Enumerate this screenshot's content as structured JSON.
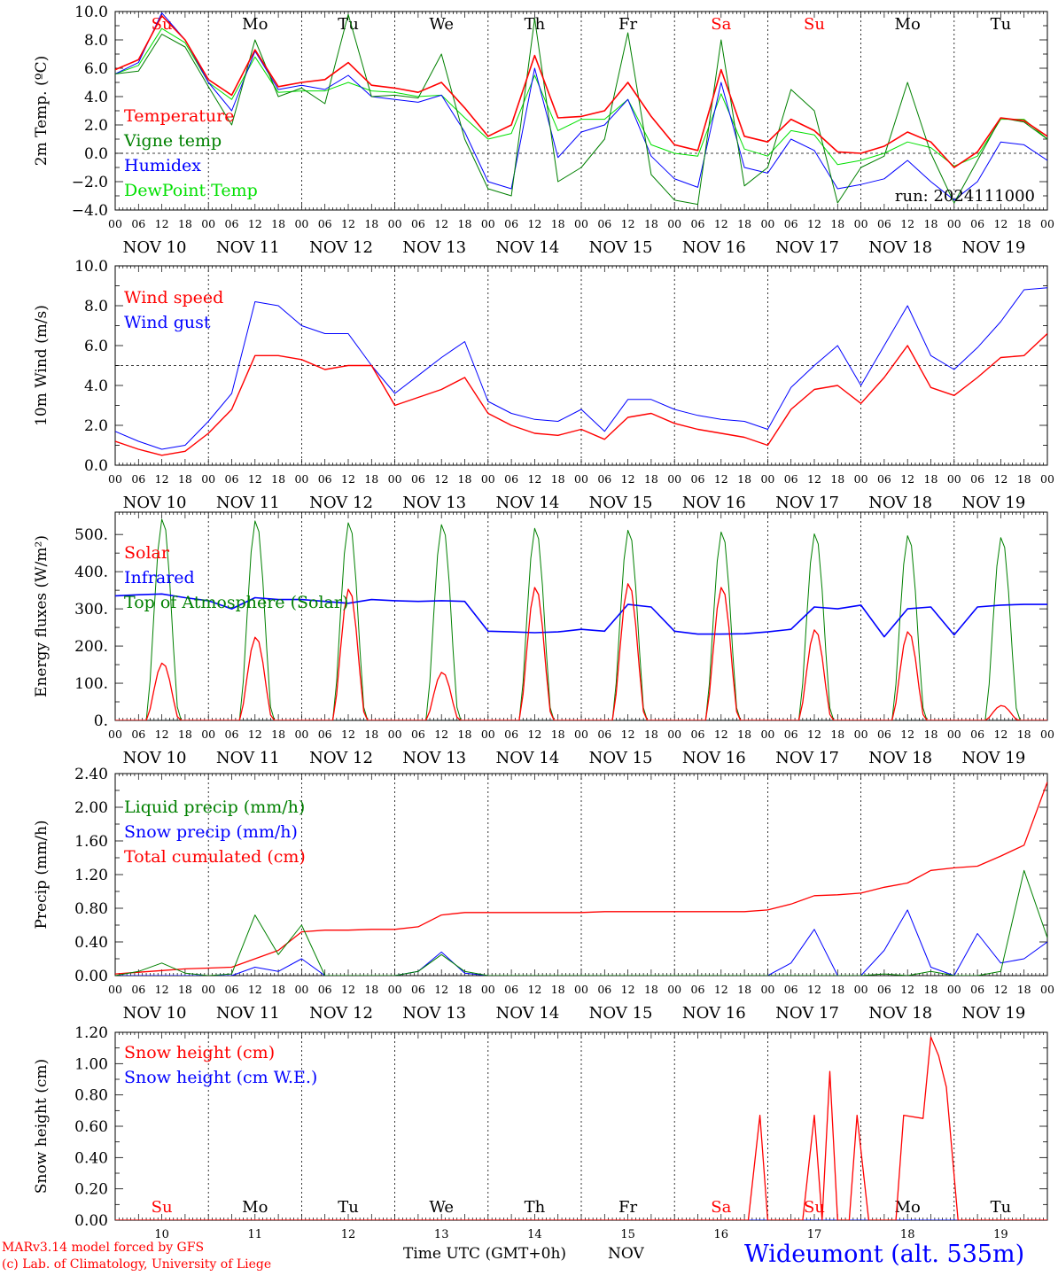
{
  "run_label": "run: 2024111000",
  "days": [
    {
      "abbr": "Su",
      "date": "NOV 10",
      "num": "10",
      "weekend": true
    },
    {
      "abbr": "Mo",
      "date": "NOV 11",
      "num": "11",
      "weekend": false
    },
    {
      "abbr": "Tu",
      "date": "NOV 12",
      "num": "12",
      "weekend": false
    },
    {
      "abbr": "We",
      "date": "NOV 13",
      "num": "13",
      "weekend": false
    },
    {
      "abbr": "Th",
      "date": "NOV 14",
      "num": "14",
      "weekend": false
    },
    {
      "abbr": "Fr",
      "date": "NOV 15",
      "num": "15",
      "weekend": false
    },
    {
      "abbr": "Sa",
      "date": "NOV 16",
      "num": "16",
      "weekend": true
    },
    {
      "abbr": "Su",
      "date": "NOV 17",
      "num": "17",
      "weekend": true
    },
    {
      "abbr": "Mo",
      "date": "NOV 18",
      "num": "18",
      "weekend": false
    },
    {
      "abbr": "Tu",
      "date": "NOV 19",
      "num": "19",
      "weekend": false
    }
  ],
  "hour_ticks": [
    "00",
    "06",
    "12",
    "18"
  ],
  "last_tick": "00",
  "colors": {
    "red": "#ff0000",
    "blue": "#0000ff",
    "green": "#008000",
    "lightgreen": "#00e000",
    "weekend": "#ff0000"
  },
  "chart_data": [
    {
      "type": "line",
      "ylabel": "2m Temp. (ºC)",
      "ylim": [
        -4,
        10
      ],
      "yticks": [
        "10.0",
        "8.0",
        "6.0",
        "4.0",
        "2.0",
        "0.0",
        "−2.0",
        "−4.0"
      ],
      "tickvals": [
        10,
        8,
        6,
        4,
        2,
        0,
        -2,
        -4
      ],
      "dashed_y": 0,
      "show_day_abbr": true,
      "x_hours": [
        0,
        6,
        12,
        18,
        24,
        30,
        36,
        42,
        48,
        54,
        60,
        66,
        72,
        78,
        84,
        90,
        96,
        102,
        108,
        114,
        120,
        126,
        132,
        138,
        144,
        150,
        156,
        162,
        168,
        174,
        180,
        186,
        192,
        198,
        204,
        210,
        216,
        222,
        228,
        234,
        240
      ],
      "series": [
        {
          "name": "Temperature",
          "color": "#ff0000",
          "width": 1.6,
          "values": [
            5.9,
            6.6,
            9.7,
            8.0,
            5.2,
            4.1,
            7.3,
            4.7,
            5.0,
            5.2,
            6.4,
            4.8,
            4.6,
            4.3,
            5.0,
            3.2,
            1.2,
            2.0,
            6.9,
            2.5,
            2.6,
            3.0,
            5.0,
            2.6,
            0.6,
            0.2,
            5.9,
            1.2,
            0.8,
            2.4,
            1.6,
            0.1,
            0.0,
            0.5,
            1.5,
            0.8,
            -1.0,
            0.1,
            2.5,
            2.3,
            1.2
          ]
        },
        {
          "name": "Vigne temp",
          "color": "#008000",
          "width": 1.0,
          "values": [
            5.6,
            5.8,
            8.4,
            7.5,
            4.7,
            2.0,
            8.0,
            4.0,
            4.6,
            3.5,
            9.8,
            4.0,
            4.1,
            3.9,
            7.0,
            1.0,
            -2.5,
            -3.0,
            9.5,
            -2.0,
            -1.0,
            1.0,
            8.5,
            -1.5,
            -3.3,
            -3.6,
            8.0,
            -2.3,
            -1.0,
            4.5,
            3.0,
            -3.5,
            -1.0,
            -0.2,
            5.0,
            0.0,
            -3.5,
            -0.5,
            2.5,
            2.2,
            1.0
          ]
        },
        {
          "name": "Humidex",
          "color": "#0000ff",
          "width": 1.0,
          "values": [
            5.6,
            6.4,
            9.9,
            8.0,
            5.0,
            3.0,
            7.2,
            4.5,
            4.8,
            4.5,
            5.5,
            4.0,
            3.8,
            3.6,
            4.1,
            1.5,
            -2.0,
            -2.5,
            6.0,
            -0.3,
            1.5,
            2.0,
            3.8,
            -0.2,
            -1.8,
            -2.4,
            5.0,
            -1.0,
            -1.4,
            1.0,
            0.2,
            -2.5,
            -2.2,
            -1.8,
            -0.5,
            -2.0,
            -3.3,
            -2.0,
            0.8,
            0.6,
            -0.5
          ]
        },
        {
          "name": "DewPoint Temp",
          "color": "#00e000",
          "width": 1.0,
          "values": [
            5.6,
            6.2,
            8.8,
            7.8,
            5.0,
            3.8,
            6.8,
            4.3,
            4.4,
            4.4,
            5.0,
            4.4,
            4.3,
            4.0,
            4.1,
            2.5,
            1.0,
            1.4,
            5.5,
            1.6,
            2.4,
            2.4,
            3.8,
            0.6,
            0.0,
            -0.2,
            4.2,
            0.3,
            -0.2,
            1.6,
            1.3,
            -0.8,
            -0.5,
            0.0,
            0.8,
            0.4,
            -0.9,
            -0.2,
            2.4,
            2.4,
            1.0
          ]
        }
      ]
    },
    {
      "type": "line",
      "ylabel": "10m Wind (m/s)",
      "ylim": [
        0,
        10
      ],
      "yticks": [
        "10.0",
        "8.0",
        "6.0",
        "4.0",
        "2.0",
        "0.0"
      ],
      "tickvals": [
        10,
        8,
        6,
        4,
        2,
        0
      ],
      "dashed_y": 5,
      "x_hours": [
        0,
        6,
        12,
        18,
        24,
        30,
        36,
        42,
        48,
        54,
        60,
        66,
        72,
        78,
        84,
        90,
        96,
        102,
        108,
        114,
        120,
        126,
        132,
        138,
        144,
        150,
        156,
        162,
        168,
        174,
        180,
        186,
        192,
        198,
        204,
        210,
        216,
        222,
        228,
        234,
        240
      ],
      "series": [
        {
          "name": "Wind speed",
          "color": "#ff0000",
          "width": 1.4,
          "values": [
            1.2,
            0.8,
            0.5,
            0.7,
            1.6,
            2.8,
            5.5,
            5.5,
            5.3,
            4.8,
            5.0,
            5.0,
            3.0,
            3.4,
            3.8,
            4.4,
            2.6,
            2.0,
            1.6,
            1.5,
            1.8,
            1.3,
            2.4,
            2.6,
            2.1,
            1.8,
            1.6,
            1.4,
            1.0,
            2.8,
            3.8,
            4.0,
            3.1,
            4.4,
            6.0,
            3.9,
            3.5,
            4.4,
            5.4,
            5.5,
            6.6
          ]
        },
        {
          "name": "Wind gust",
          "color": "#0000ff",
          "width": 1.0,
          "values": [
            1.7,
            1.2,
            0.8,
            1.0,
            2.2,
            3.6,
            8.2,
            8.0,
            7.0,
            6.6,
            6.6,
            5.0,
            3.6,
            4.5,
            5.4,
            6.2,
            3.2,
            2.6,
            2.3,
            2.2,
            2.8,
            1.7,
            3.3,
            3.3,
            2.8,
            2.5,
            2.3,
            2.2,
            1.8,
            3.9,
            5.0,
            6.0,
            4.0,
            6.0,
            8.0,
            5.5,
            4.8,
            5.9,
            7.2,
            8.8,
            8.9
          ]
        }
      ]
    },
    {
      "type": "line",
      "ylabel": "Energy fluxes (W/m²)",
      "ylim": [
        0,
        560
      ],
      "yticks": [
        "500.",
        "400.",
        "300.",
        "200.",
        "100.",
        "0."
      ],
      "tickvals": [
        500,
        400,
        300,
        200,
        100,
        0
      ],
      "dashed_y": null,
      "diurnal": true,
      "series": [
        {
          "name": "Solar",
          "color": "#ff0000",
          "width": 1.3,
          "daily_peaks": [
            155,
            225,
            355,
            130,
            360,
            370,
            360,
            245,
            240,
            40
          ]
        },
        {
          "name": "Infrared",
          "color": "#0000ff",
          "width": 1.6,
          "x_hours": [
            0,
            6,
            12,
            18,
            24,
            30,
            36,
            42,
            48,
            54,
            60,
            66,
            72,
            78,
            84,
            90,
            96,
            102,
            108,
            114,
            120,
            126,
            132,
            138,
            144,
            150,
            156,
            162,
            168,
            174,
            180,
            186,
            192,
            198,
            204,
            210,
            216,
            222,
            228,
            234,
            240
          ],
          "values": [
            335,
            338,
            340,
            330,
            322,
            300,
            330,
            325,
            325,
            320,
            315,
            325,
            322,
            320,
            322,
            320,
            240,
            238,
            236,
            238,
            245,
            240,
            312,
            305,
            240,
            232,
            232,
            233,
            238,
            245,
            305,
            300,
            310,
            225,
            300,
            305,
            230,
            305,
            310,
            312,
            312
          ]
        },
        {
          "name": "Top of Atmosphere (Solar)",
          "color": "#008000",
          "width": 1.0,
          "daily_peaks": [
            545,
            540,
            535,
            530,
            520,
            515,
            510,
            505,
            500,
            495
          ]
        }
      ]
    },
    {
      "type": "line",
      "ylabel": "Precip (mm/h)",
      "ylim": [
        0,
        2.4
      ],
      "yticks": [
        "2.40",
        "2.00",
        "1.60",
        "1.20",
        "0.80",
        "0.40",
        "0.00"
      ],
      "tickvals": [
        2.4,
        2.0,
        1.6,
        1.2,
        0.8,
        0.4,
        0.0
      ],
      "dashed_y": null,
      "x_hours": [
        0,
        6,
        12,
        18,
        24,
        30,
        36,
        42,
        48,
        54,
        60,
        66,
        72,
        78,
        84,
        90,
        96,
        102,
        108,
        114,
        120,
        126,
        132,
        138,
        144,
        150,
        156,
        162,
        168,
        174,
        180,
        186,
        192,
        198,
        204,
        210,
        216,
        222,
        228,
        234,
        240
      ],
      "series": [
        {
          "name": "Liquid precip (mm/h)",
          "color": "#008000",
          "width": 1.0,
          "values": [
            0.0,
            0.05,
            0.15,
            0.03,
            0.0,
            0.02,
            0.72,
            0.25,
            0.6,
            0.0,
            0.0,
            0.0,
            0.0,
            0.05,
            0.25,
            0.05,
            0.0,
            0.0,
            0.0,
            0.0,
            0.0,
            0.0,
            0.0,
            0.0,
            0.0,
            0.0,
            0.0,
            0.0,
            0.0,
            0.0,
            0.0,
            0.0,
            0.0,
            0.02,
            0.0,
            0.05,
            0.0,
            0.0,
            0.05,
            1.25,
            0.45
          ]
        },
        {
          "name": "Snow precip (mm/h)",
          "color": "#0000ff",
          "width": 1.0,
          "values": [
            0.0,
            0.0,
            0.0,
            0.0,
            0.0,
            0.0,
            0.1,
            0.05,
            0.2,
            0.0,
            0.0,
            0.0,
            0.0,
            0.05,
            0.28,
            0.03,
            0.0,
            0.0,
            0.0,
            0.0,
            0.0,
            0.0,
            0.0,
            0.0,
            0.0,
            0.0,
            0.0,
            0.0,
            0.0,
            0.15,
            0.55,
            0.0,
            0.0,
            0.3,
            0.78,
            0.1,
            0.0,
            0.5,
            0.15,
            0.2,
            0.4
          ]
        },
        {
          "name": "Total cumulated (cm)",
          "color": "#ff0000",
          "width": 1.3,
          "values": [
            0.02,
            0.04,
            0.06,
            0.08,
            0.09,
            0.1,
            0.2,
            0.3,
            0.52,
            0.54,
            0.54,
            0.55,
            0.55,
            0.58,
            0.72,
            0.75,
            0.75,
            0.75,
            0.75,
            0.75,
            0.75,
            0.76,
            0.76,
            0.76,
            0.76,
            0.76,
            0.76,
            0.76,
            0.78,
            0.85,
            0.95,
            0.96,
            0.98,
            1.05,
            1.1,
            1.25,
            1.28,
            1.3,
            1.42,
            1.55,
            2.3
          ]
        }
      ]
    },
    {
      "type": "line",
      "ylabel": "Snow height (cm)",
      "ylim": [
        0,
        1.2
      ],
      "yticks": [
        "1.20",
        "1.00",
        "0.80",
        "0.60",
        "0.40",
        "0.20",
        "0.00"
      ],
      "tickvals": [
        1.2,
        1.0,
        0.8,
        0.6,
        0.4,
        0.2,
        0.0
      ],
      "dashed_y": null,
      "bottom_days": true,
      "x_hours": [
        0,
        163,
        166,
        168,
        170,
        173,
        177,
        180,
        182,
        184,
        186,
        188,
        189,
        191,
        194,
        196,
        198,
        201,
        203,
        208,
        210,
        212,
        214,
        217,
        219,
        221,
        225,
        228,
        240
      ],
      "series": [
        {
          "name": "Snow height (cm)",
          "color": "#ff0000",
          "width": 1.3,
          "values": [
            0,
            0,
            0.67,
            0,
            0,
            0,
            0,
            0.67,
            0,
            0.95,
            0,
            0,
            0,
            0.67,
            0,
            0,
            0,
            0,
            0.67,
            0.65,
            1.17,
            1.05,
            0.85,
            0,
            0,
            0,
            0,
            0,
            0
          ]
        },
        {
          "name": "Snow height (cm W.E.)",
          "color": "#0000ff",
          "width": 1.0,
          "values": [
            0,
            0,
            0,
            0,
            0,
            0,
            0,
            0,
            0,
            0,
            0,
            0,
            0,
            0,
            0,
            0,
            0,
            0,
            0,
            0,
            0,
            0,
            0,
            0,
            0,
            0,
            0,
            0,
            0
          ]
        }
      ]
    }
  ],
  "footer": {
    "line1": "MARv3.14 model forced by GFS",
    "line2": "(c) Lab. of Climatology, University of Liege",
    "xlabel": "Time UTC (GMT+0h)",
    "month": "NOV",
    "station": "Wideumont (alt. 535m)"
  }
}
